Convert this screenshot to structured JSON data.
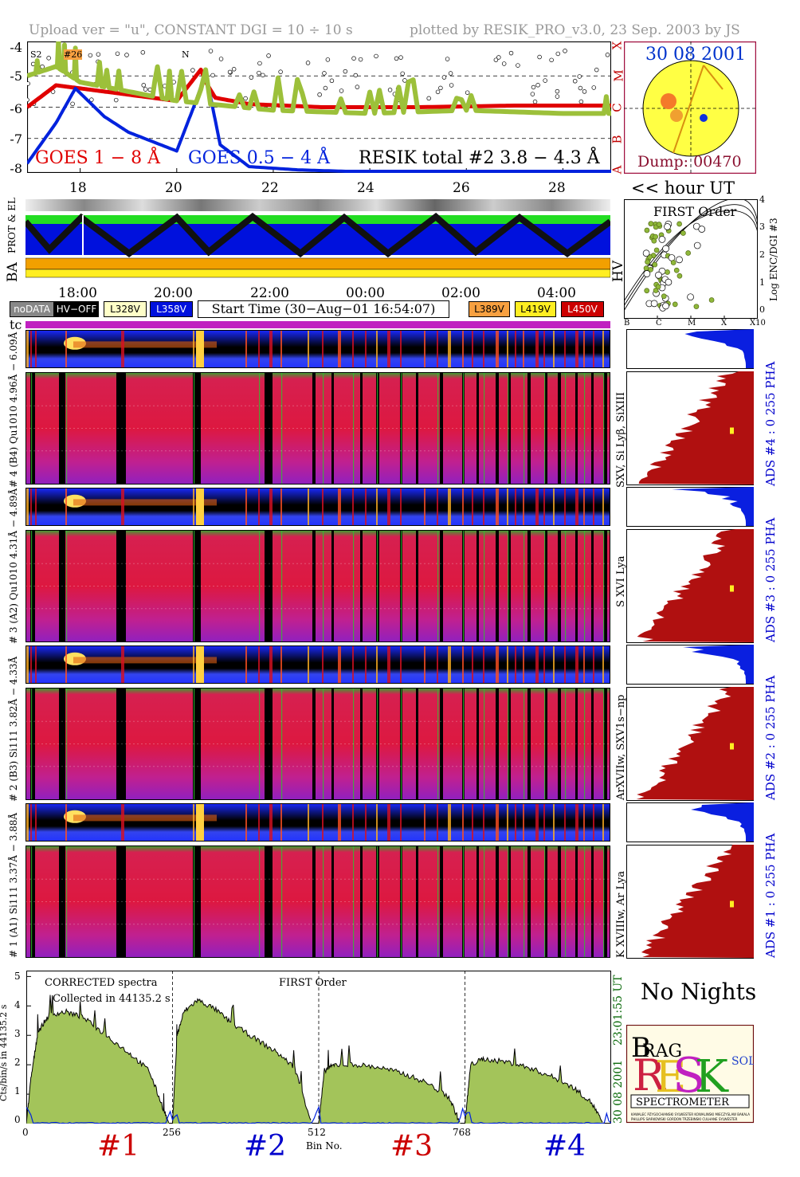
{
  "header": {
    "left": "Upload ver = \"u\", CONSTANT  DGI =  10 ÷  10 s",
    "right": "plotted by RESIK_PRO_v3.0, 23 Sep. 2003 by JS"
  },
  "goes_panel": {
    "y_ticks": [
      "-4",
      "-5",
      "-6",
      "-7",
      "-8"
    ],
    "class_ticks": [
      "X",
      "M",
      "C",
      "B",
      "A"
    ],
    "x_ticks": [
      "18",
      "20",
      "22",
      "24",
      "26",
      "28"
    ],
    "x_unit": "<< hour UT",
    "label_goes18": "GOES 1 − 8 Å",
    "label_goes054": "GOES 0.5 − 4 Å",
    "label_resik": "RESIK total #2  3.8 − 4.3 Å",
    "annotations": [
      "S2",
      "#26",
      "N"
    ],
    "colors": {
      "goes18": "#e00000",
      "goes054": "#0022dd",
      "resik": "#9cc03a"
    }
  },
  "sun_panel": {
    "date": "30 08 2001",
    "dump": "Dump: 00470"
  },
  "status_panel": {
    "label_ba": "BA",
    "label_prot": "PROT & EL",
    "label_hv": "HV",
    "time_ticks": [
      "18:00",
      "20:00",
      "22:00",
      "00:00",
      "02:00",
      "04:00"
    ]
  },
  "legend": {
    "nodata": "noDATA",
    "hvoff": "HV−OFF",
    "l328": "L328V",
    "l358": "L358V",
    "start_time": "Start Time (30−Aug−01 16:54:07)",
    "l389": "L389V",
    "l419": "L419V",
    "l450": "L450V",
    "tc": "tc"
  },
  "scatter_panel": {
    "title": "FIRST Order",
    "ylabel": "Log ENC/DGI #3",
    "y_ticks": [
      "4",
      "3",
      "2",
      "1",
      "0"
    ],
    "x_ticks": [
      "B",
      "C",
      "M",
      "X",
      "X10"
    ]
  },
  "detectors": [
    {
      "name": "# 4 (B4) Qu1010 4.96Å − 6.09Å",
      "lines": "SXV, Si Lyβ, SiXIII",
      "ads": "ADS #4 :    0 255   PHA"
    },
    {
      "name": "# 3 (A2) Qu1010 4.31Å − 4.89Å",
      "lines": "S XVI Lya",
      "ads": "ADS #3 :    0 255   PHA"
    },
    {
      "name": "# 2 (B3) Si111 3.82Å − 4.33Å",
      "lines": "ArXVIIw, SXV1s−np",
      "ads": "ADS #2 :    0 255   PHA"
    },
    {
      "name": "# 1 (A1) Si111 3.37Å − 3.88Å",
      "lines": "K XVIIIw, Ar Lya",
      "ads": "ADS #1 :    0 255   PHA"
    }
  ],
  "spectrum_panel": {
    "title": "CORRECTED spectra",
    "subtitle": "Collected in 44135.2 s",
    "order": "FIRST Order",
    "ylabel": "Cts/bin/s in 44135.2 s",
    "y_ticks": [
      "5",
      "4",
      "3",
      "2",
      "1",
      "0"
    ],
    "x_ticks": [
      "0",
      "256",
      "512",
      "768"
    ],
    "xlabel": "Bin No.",
    "right_date": "30 08 2001",
    "right_time": "23:01:55 UT",
    "det_labels": [
      "#1",
      "#2",
      "#3",
      "#4"
    ],
    "det_colors": [
      "#cc0000",
      "#0000cc",
      "#cc0000",
      "#0000cc"
    ]
  },
  "no_nights": "No Nights",
  "logo": {
    "text": "SPECTROMETER",
    "letters": [
      "B",
      "R",
      "A",
      "G",
      "E",
      "S",
      "I",
      "K",
      "S",
      "O",
      "L",
      "A",
      "R"
    ]
  },
  "chart_data": [
    {
      "type": "line",
      "title": "",
      "xlabel": "<< hour UT",
      "ylabel": "",
      "x_range": [
        16.9,
        29.0
      ],
      "ylim": [
        -8.1,
        -3.9
      ],
      "grid": true,
      "series": [
        {
          "name": "GOES 1 − 8 Å",
          "x": [
            16.9,
            17.5,
            18.0,
            18.5,
            19.0,
            20.0,
            20.5,
            20.6,
            20.8,
            21.5,
            23.0,
            25.0,
            27.0,
            29.0
          ],
          "y": [
            -6.0,
            -5.3,
            -5.4,
            -5.5,
            -5.6,
            -5.8,
            -4.8,
            -5.2,
            -5.7,
            -5.9,
            -6.0,
            -6.0,
            -5.95,
            -5.95
          ]
        },
        {
          "name": "GOES 0.5 − 4 Å",
          "x": [
            16.9,
            17.5,
            17.9,
            18.5,
            19.0,
            20.0,
            20.4,
            20.6,
            20.9,
            21.5,
            22.5,
            23.5,
            25.0,
            27.0,
            29.0
          ],
          "y": [
            -7.8,
            -6.5,
            -5.4,
            -6.3,
            -6.8,
            -7.4,
            -5.8,
            -4.9,
            -7.2,
            -7.9,
            -8.0,
            -8.05,
            -8.05,
            -8.05,
            -8.05
          ]
        },
        {
          "name": "RESIK total #2  3.8 − 4.3 Å",
          "x": [
            16.9,
            17.5,
            18.0,
            19.0,
            20.0,
            22.0,
            24.0,
            26.0,
            28.0,
            29.0
          ],
          "y": [
            -5.0,
            -4.7,
            -5.2,
            -5.5,
            -5.8,
            -6.1,
            -6.2,
            -6.1,
            -6.2,
            -6.2
          ]
        }
      ]
    },
    {
      "type": "area",
      "title": "CORRECTED spectra",
      "xlabel": "Bin No.",
      "ylabel": "Cts/bin/s in 44135.2 s",
      "xlim": [
        0,
        1024
      ],
      "ylim": [
        0,
        5.2
      ],
      "series": [
        {
          "name": "#1",
          "x": [
            0,
            8,
            20,
            40,
            70,
            100,
            140,
            180,
            215,
            240,
            250
          ],
          "y": [
            0,
            1.5,
            3.1,
            3.7,
            3.8,
            3.6,
            3.0,
            2.4,
            1.8,
            0.5,
            0
          ]
        },
        {
          "name": "#2",
          "x": [
            256,
            264,
            276,
            300,
            330,
            360,
            400,
            440,
            470,
            500
          ],
          "y": [
            0,
            3.0,
            3.8,
            4.2,
            3.9,
            3.4,
            2.9,
            2.4,
            1.9,
            0
          ]
        },
        {
          "name": "#3",
          "x": [
            512,
            522,
            540,
            580,
            620,
            660,
            700,
            740,
            760
          ],
          "y": [
            0,
            1.8,
            2.0,
            2.0,
            1.9,
            1.7,
            1.4,
            0.9,
            0
          ]
        },
        {
          "name": "#4",
          "x": [
            768,
            778,
            800,
            840,
            880,
            920,
            960,
            990,
            1010
          ],
          "y": [
            0,
            2.0,
            2.2,
            2.1,
            1.9,
            1.6,
            1.2,
            0.7,
            0
          ]
        }
      ]
    }
  ]
}
